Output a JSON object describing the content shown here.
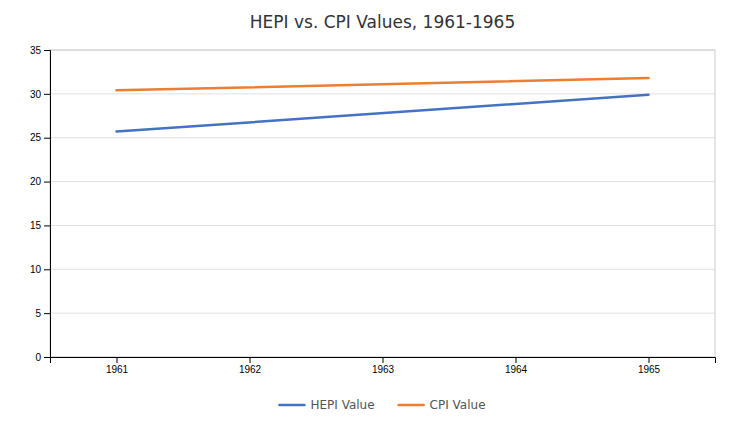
{
  "chart_data": {
    "type": "line",
    "title": "HEPI vs. CPI Values, 1961-1965",
    "x": [
      1961,
      1965
    ],
    "series": [
      {
        "name": "HEPI Value",
        "color": "#4472C4",
        "values": [
          25.7,
          29.9
        ]
      },
      {
        "name": "CPI Value",
        "color": "#ED7D31",
        "values": [
          30.4,
          31.8
        ]
      }
    ],
    "xlim": [
      1960.5,
      1965.5
    ],
    "xticks": [
      1961,
      1962,
      1963,
      1964,
      1965
    ],
    "ylim": [
      0,
      35
    ],
    "yticks": [
      0,
      5,
      10,
      15,
      20,
      25,
      30,
      35
    ],
    "grid": true,
    "legend": "bottom"
  }
}
